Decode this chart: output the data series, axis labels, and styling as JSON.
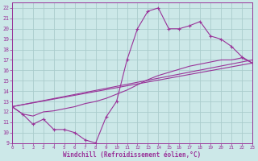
{
  "xlabel": "Windchill (Refroidissement éolien,°C)",
  "bg_color": "#cce8e8",
  "line_color": "#993399",
  "grid_color": "#aacccc",
  "xlim": [
    0,
    23
  ],
  "ylim": [
    9,
    22.5
  ],
  "xticks": [
    0,
    1,
    2,
    3,
    4,
    5,
    6,
    7,
    8,
    9,
    10,
    11,
    12,
    13,
    14,
    15,
    16,
    17,
    18,
    19,
    20,
    21,
    22,
    23
  ],
  "yticks": [
    9,
    10,
    11,
    12,
    13,
    14,
    15,
    16,
    17,
    18,
    19,
    20,
    21,
    22
  ],
  "series_zigzag": {
    "x": [
      0,
      1,
      2,
      3,
      4,
      5,
      6,
      7,
      8,
      9,
      10,
      11,
      12,
      13,
      14,
      15,
      16,
      17,
      18,
      19,
      20,
      21,
      22,
      23
    ],
    "y": [
      12.5,
      11.8,
      10.8,
      11.3,
      10.3,
      10.3,
      10.0,
      9.3,
      9.0,
      11.5,
      13.0,
      17.0,
      20.0,
      21.7,
      22.0,
      20.0,
      20.0,
      20.3,
      20.7,
      19.3,
      19.0,
      18.3,
      17.3,
      16.7
    ]
  },
  "series_curve": {
    "x": [
      0,
      1,
      2,
      3,
      4,
      5,
      6,
      7,
      8,
      9,
      10,
      11,
      12,
      13,
      14,
      15,
      16,
      17,
      18,
      19,
      20,
      21,
      22,
      23
    ],
    "y": [
      12.5,
      11.8,
      11.6,
      12.0,
      12.1,
      12.3,
      12.5,
      12.8,
      13.0,
      13.3,
      13.7,
      14.1,
      14.6,
      15.1,
      15.5,
      15.8,
      16.1,
      16.4,
      16.6,
      16.8,
      17.0,
      17.0,
      17.2,
      16.7
    ]
  },
  "series_line1": {
    "x": [
      0,
      23
    ],
    "y": [
      12.5,
      17.0
    ]
  },
  "series_line2": {
    "x": [
      0,
      23
    ],
    "y": [
      12.5,
      16.7
    ]
  }
}
